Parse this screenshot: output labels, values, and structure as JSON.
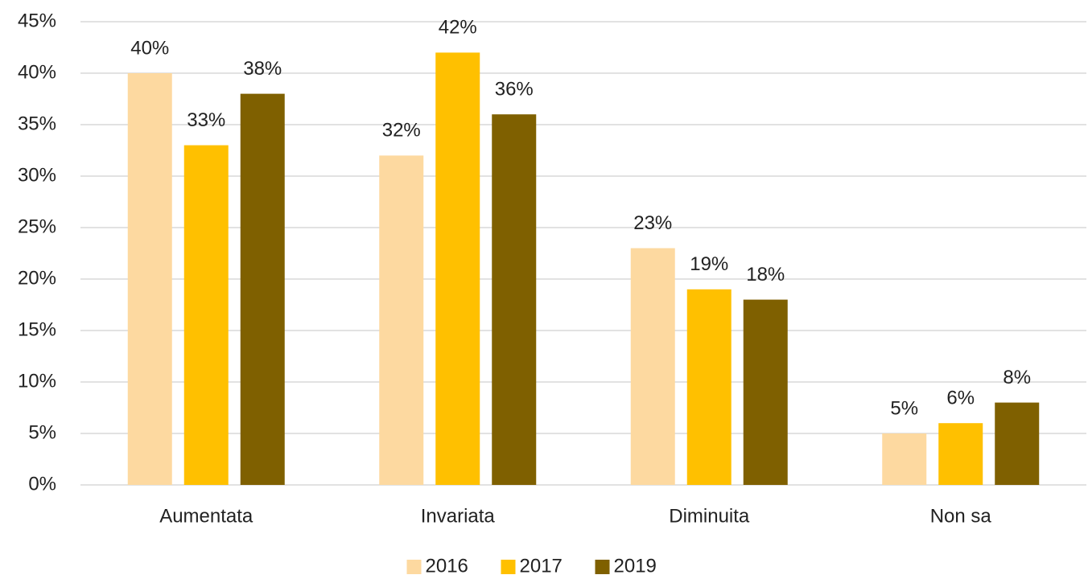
{
  "chart_data": {
    "type": "bar",
    "categories": [
      "Aumentata",
      "Invariata",
      "Diminuita",
      "Non sa"
    ],
    "series": [
      {
        "name": "2016",
        "color": "#FDD9A0",
        "values": [
          40,
          32,
          23,
          5
        ],
        "value_labels": [
          "40%",
          "32%",
          "23%",
          "5%"
        ]
      },
      {
        "name": "2017",
        "color": "#FFC000",
        "values": [
          33,
          42,
          19,
          6
        ],
        "value_labels": [
          "33%",
          "42%",
          "19%",
          "6%"
        ]
      },
      {
        "name": "2019",
        "color": "#7F6000",
        "values": [
          38,
          36,
          18,
          8
        ],
        "value_labels": [
          "38%",
          "36%",
          "18%",
          "8%"
        ]
      }
    ],
    "ylim": [
      0,
      45
    ],
    "yticks": [
      {
        "value": 0,
        "label": "0%"
      },
      {
        "value": 5,
        "label": "5%"
      },
      {
        "value": 10,
        "label": "10%"
      },
      {
        "value": 15,
        "label": "15%"
      },
      {
        "value": 20,
        "label": "20%"
      },
      {
        "value": 25,
        "label": "25%"
      },
      {
        "value": 30,
        "label": "30%"
      },
      {
        "value": 35,
        "label": "35%"
      },
      {
        "value": 40,
        "label": "40%"
      },
      {
        "value": 45,
        "label": "45%"
      }
    ],
    "grid": true,
    "legend": "bottom"
  }
}
